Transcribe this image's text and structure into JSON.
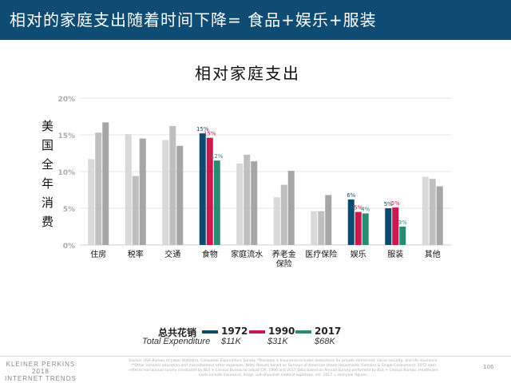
{
  "header": {
    "title": "相对的家庭支出随着时间下降=  食品+娱乐+服装"
  },
  "chart_data": {
    "type": "bar",
    "title": "相对家庭支出",
    "ylabel": "美国全年消费",
    "ylim": [
      0,
      20
    ],
    "yticks": [
      "0%",
      "5%",
      "10%",
      "15%",
      "20%"
    ],
    "grid": true,
    "categories": [
      "住房",
      "税率",
      "交通",
      "食物",
      "家庭流水",
      "养老金保险",
      "医疗保险",
      "娱乐",
      "服装",
      "其他"
    ],
    "category_labels": [
      [
        "住房"
      ],
      [
        "税率"
      ],
      [
        "交通"
      ],
      [
        "食物"
      ],
      [
        "家庭流水"
      ],
      [
        "养老金",
        "保险"
      ],
      [
        "医疗保险"
      ],
      [
        "娱乐"
      ],
      [
        "服装"
      ],
      [
        "其他"
      ]
    ],
    "series": [
      {
        "name": "1972",
        "values": [
          11.7,
          15.1,
          14.3,
          15.2,
          11.1,
          6.5,
          4.6,
          6.2,
          5.0,
          9.3
        ]
      },
      {
        "name": "1990",
        "values": [
          15.3,
          9.4,
          16.2,
          14.6,
          12.3,
          8.2,
          4.6,
          4.5,
          5.1,
          9.0
        ]
      },
      {
        "name": "2017",
        "values": [
          16.7,
          14.5,
          13.5,
          11.5,
          11.4,
          10.1,
          6.8,
          4.3,
          2.5,
          8.0
        ]
      }
    ],
    "highlighted_categories": [
      "食物",
      "娱乐",
      "服装"
    ],
    "data_labels": {
      "食物": [
        "15%",
        "15%",
        "12%"
      ],
      "娱乐": [
        "6%",
        "5%",
        "4%"
      ],
      "服装": [
        "5%",
        "5%",
        "3%"
      ]
    },
    "colors": {
      "1972": "#0d4a70",
      "1990": "#c8194f",
      "2017": "#2a8a73",
      "gray": [
        "#d9d9d9",
        "#bfbfbf",
        "#a6a6a6"
      ]
    },
    "legend": {
      "label": "总共花销",
      "sublabel": "Total Expenditure",
      "totals": [
        "$11K",
        "$31K",
        "$68K"
      ],
      "position": "bottom"
    }
  },
  "footer": {
    "source": "Source: USA Bureau of Labor Statistics, Consumer Expenditure Survey. *Pensions + Insurance includes deductions for private retirement, social security, and life insurance. **Other includes education and miscellaneous other expenses. Note: Results based on Surveys of American Urban Households (Families & Single Consumers). 1972 data reflects non-annual survey conducted by BLS + Census Bureau to adjust CPI. 1990 and 2017 Data based on Annual Survey performed by BLS + Census Bureau. Healthcare costs include insurance, drugs, out-of-pocket medical expenses, etc. 2017 = mid-year figures.",
    "page": "106",
    "logo": [
      "KLEINER PERKINS",
      "2018",
      "INTERNET TRENDS"
    ]
  }
}
